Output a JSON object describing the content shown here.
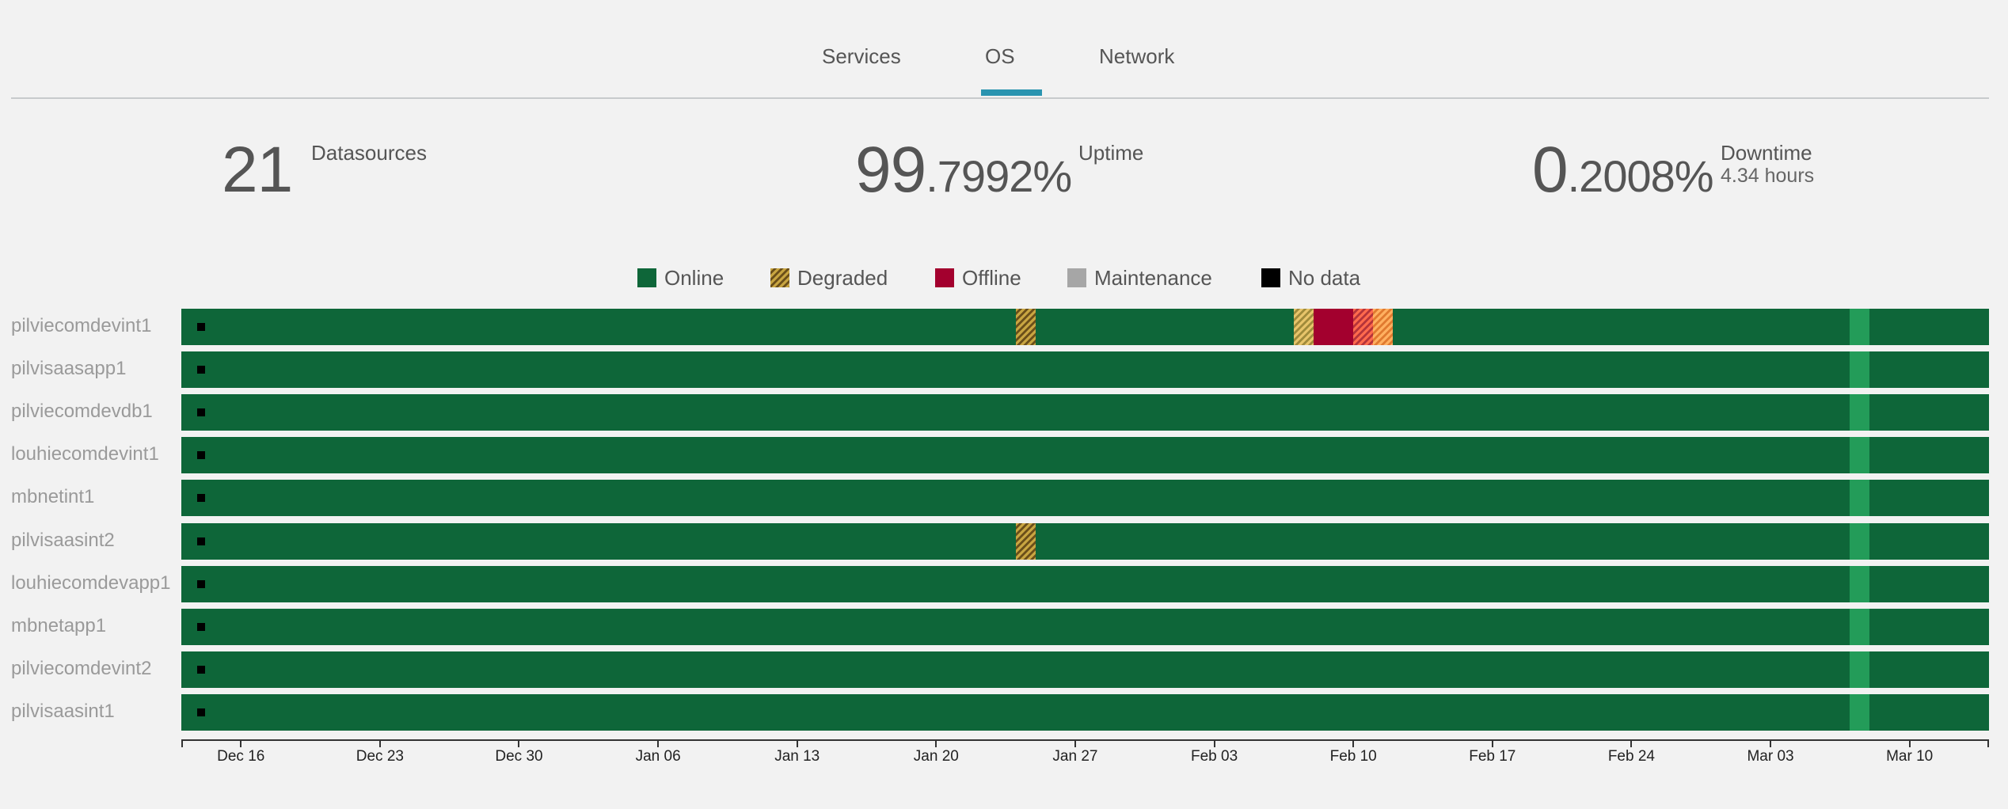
{
  "tabs": [
    {
      "label": "Services",
      "active": false
    },
    {
      "label": "OS",
      "active": true
    },
    {
      "label": "Network",
      "active": false
    }
  ],
  "colors": {
    "online": "#0e6639",
    "offline": "#a3002e",
    "maintenance": "#a6a6a6",
    "no_data": "#000000",
    "tab_accent": "#2a94b0",
    "current_period": "#239c59"
  },
  "stats": {
    "datasources": {
      "value": "21",
      "label": "Datasources"
    },
    "uptime": {
      "int": "99",
      "dec": ".7992%",
      "label": "Uptime"
    },
    "downtime": {
      "int": "0",
      "dec": ".2008%",
      "label": "Downtime",
      "sub": "4.34 hours"
    }
  },
  "legend": [
    {
      "label": "Online",
      "icon": "online-swatch"
    },
    {
      "label": "Degraded",
      "icon": "degraded-swatch"
    },
    {
      "label": "Offline",
      "icon": "offline-swatch"
    },
    {
      "label": "Maintenance",
      "icon": "maintenance-swatch"
    },
    {
      "label": "No data",
      "icon": "no-data-swatch"
    }
  ],
  "chart_data": {
    "type": "timeline",
    "x_start": "2018-12-13",
    "x_end": "2019-03-14",
    "x_ticks": [
      "Dec 16",
      "Dec 23",
      "Dec 30",
      "Jan 06",
      "Jan 13",
      "Jan 20",
      "Jan 27",
      "Feb 03",
      "Feb 10",
      "Feb 17",
      "Feb 24",
      "Mar 03",
      "Mar 10"
    ],
    "x_tick_dates": [
      "2018-12-16",
      "2018-12-23",
      "2018-12-30",
      "2019-01-06",
      "2019-01-13",
      "2019-01-20",
      "2019-01-27",
      "2019-02-03",
      "2019-02-10",
      "2019-02-17",
      "2019-02-24",
      "2019-03-03",
      "2019-03-10"
    ],
    "no_data_date": "2018-12-14",
    "current_period": {
      "start": "2019-03-07",
      "end": "2019-03-08"
    },
    "rows": [
      {
        "name": "pilviecomdevint1",
        "events": [
          {
            "start": "2019-01-24",
            "end": "2019-01-25",
            "status": "degraded"
          },
          {
            "start": "2019-02-07",
            "end": "2019-02-08",
            "status": "degraded-minor"
          },
          {
            "start": "2019-02-08",
            "end": "2019-02-10",
            "status": "offline"
          },
          {
            "start": "2019-02-10",
            "end": "2019-02-11",
            "status": "degraded-major"
          },
          {
            "start": "2019-02-11",
            "end": "2019-02-12",
            "status": "degraded-moderate"
          }
        ]
      },
      {
        "name": "pilvisaasapp1",
        "events": []
      },
      {
        "name": "pilviecomdevdb1",
        "events": []
      },
      {
        "name": "louhiecomdevint1",
        "events": []
      },
      {
        "name": "mbnetint1",
        "events": []
      },
      {
        "name": "pilvisaasint2",
        "events": [
          {
            "start": "2019-01-24",
            "end": "2019-01-25",
            "status": "degraded"
          }
        ]
      },
      {
        "name": "louhiecomdevapp1",
        "events": []
      },
      {
        "name": "mbnetapp1",
        "events": []
      },
      {
        "name": "pilviecomdevint2",
        "events": []
      },
      {
        "name": "pilvisaasint1",
        "events": []
      }
    ]
  }
}
